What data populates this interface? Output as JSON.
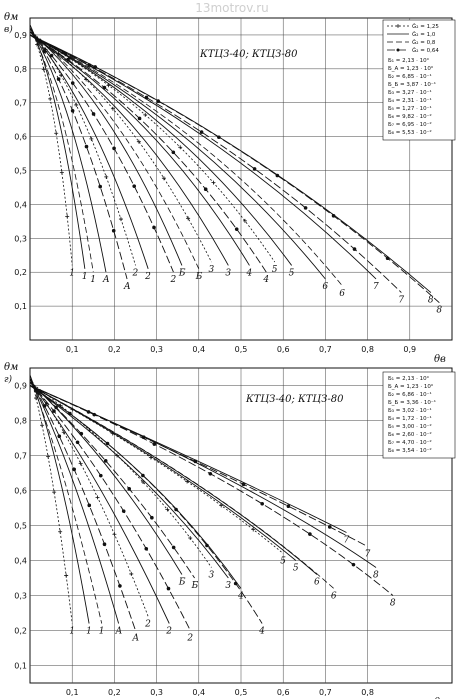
{
  "watermark": "13motrov.ru",
  "chart_data": [
    {
      "type": "line",
      "panel_letter": "в)",
      "title": "КТЦЗ-40; КТЦЗ-80",
      "ylabel": "θм",
      "xlabel": "θв",
      "xlim": [
        0.0,
        1.0
      ],
      "ylim": [
        0.0,
        0.95
      ],
      "grid": true,
      "x_ticks": [
        "0,1",
        "0,2",
        "0,3",
        "0,4",
        "0,5",
        "0,6",
        "0,7",
        "0,8",
        "0,9"
      ],
      "y_ticks": [
        "0,1",
        "0,2",
        "0,3",
        "0,4",
        "0,5",
        "0,6",
        "0,7",
        "0,8",
        "0,9"
      ],
      "legend_styles": [
        {
          "label": "Ĝ₂ = 1,25",
          "dash": "2,2",
          "marker": "plus"
        },
        {
          "label": "Ĝ₂ = 1,0",
          "dash": "",
          "marker": "none"
        },
        {
          "label": "Ĝ₂ = 0,8",
          "dash": "6,3",
          "marker": "none"
        },
        {
          "label": "Ĝ₂ = 0,64",
          "dash": "8,3",
          "marker": "dot"
        }
      ],
      "legend_params": [
        "Б₁ = 2,13 · 10⁰",
        "Б_A = 1,23 · 10⁰",
        "Б₂ = 6,85 · 10⁻¹",
        "Б_Б = 3,87 · 10⁻¹",
        "Б₃ = 3,27 · 10⁻¹",
        "Б₄ = 2,31 · 10⁻¹",
        "Б₅ = 1,27 · 10⁻¹",
        "Б₆ = 9,82 · 10⁻²",
        "Б₇ = 6,95 · 10⁻²",
        "Б₈ = 5,53 · 10⁻²"
      ],
      "group_labels": [
        "1",
        "A",
        "2",
        "Б",
        "3",
        "4",
        "5",
        "6",
        "7",
        "8"
      ],
      "curves": [
        {
          "group": "1",
          "style": 0,
          "x": [
            0.0,
            0.06,
            0.1
          ],
          "y": [
            0.93,
            0.75,
            0.22
          ]
        },
        {
          "group": "1",
          "style": 1,
          "x": [
            0.0,
            0.07,
            0.13
          ],
          "y": [
            0.93,
            0.74,
            0.21
          ]
        },
        {
          "group": "1",
          "style": 2,
          "x": [
            0.0,
            0.08,
            0.15
          ],
          "y": [
            0.92,
            0.73,
            0.2
          ]
        },
        {
          "group": "A",
          "style": 1,
          "x": [
            0.0,
            0.1,
            0.18
          ],
          "y": [
            0.92,
            0.72,
            0.2
          ]
        },
        {
          "group": "A",
          "style": 3,
          "x": [
            0.0,
            0.12,
            0.23
          ],
          "y": [
            0.92,
            0.7,
            0.18
          ]
        },
        {
          "group": "2",
          "style": 0,
          "x": [
            0.0,
            0.13,
            0.25
          ],
          "y": [
            0.92,
            0.72,
            0.22
          ]
        },
        {
          "group": "2",
          "style": 1,
          "x": [
            0.0,
            0.15,
            0.28
          ],
          "y": [
            0.91,
            0.7,
            0.21
          ]
        },
        {
          "group": "2",
          "style": 3,
          "x": [
            0.0,
            0.18,
            0.34
          ],
          "y": [
            0.91,
            0.68,
            0.2
          ]
        },
        {
          "group": "Б",
          "style": 1,
          "x": [
            0.0,
            0.2,
            0.36
          ],
          "y": [
            0.91,
            0.7,
            0.22
          ]
        },
        {
          "group": "Б",
          "style": 2,
          "x": [
            0.0,
            0.22,
            0.4
          ],
          "y": [
            0.91,
            0.69,
            0.21
          ]
        },
        {
          "group": "3",
          "style": 0,
          "x": [
            0.0,
            0.24,
            0.43
          ],
          "y": [
            0.91,
            0.7,
            0.23
          ]
        },
        {
          "group": "3",
          "style": 1,
          "x": [
            0.0,
            0.26,
            0.47
          ],
          "y": [
            0.9,
            0.69,
            0.22
          ]
        },
        {
          "group": "4",
          "style": 1,
          "x": [
            0.0,
            0.3,
            0.52
          ],
          "y": [
            0.9,
            0.67,
            0.22
          ]
        },
        {
          "group": "4",
          "style": 3,
          "x": [
            0.0,
            0.32,
            0.56
          ],
          "y": [
            0.9,
            0.66,
            0.2
          ]
        },
        {
          "group": "5",
          "style": 0,
          "x": [
            0.0,
            0.34,
            0.58
          ],
          "y": [
            0.9,
            0.67,
            0.23
          ]
        },
        {
          "group": "5",
          "style": 1,
          "x": [
            0.0,
            0.36,
            0.62
          ],
          "y": [
            0.9,
            0.66,
            0.22
          ]
        },
        {
          "group": "6",
          "style": 1,
          "x": [
            0.0,
            0.4,
            0.7
          ],
          "y": [
            0.9,
            0.64,
            0.18
          ]
        },
        {
          "group": "6",
          "style": 2,
          "x": [
            0.0,
            0.43,
            0.74
          ],
          "y": [
            0.9,
            0.63,
            0.16
          ]
        },
        {
          "group": "7",
          "style": 1,
          "x": [
            0.0,
            0.46,
            0.82
          ],
          "y": [
            0.9,
            0.62,
            0.18
          ]
        },
        {
          "group": "7",
          "style": 3,
          "x": [
            0.0,
            0.5,
            0.88
          ],
          "y": [
            0.9,
            0.6,
            0.14
          ]
        },
        {
          "group": "8",
          "style": 1,
          "x": [
            0.0,
            0.52,
            0.95
          ],
          "y": [
            0.9,
            0.6,
            0.14
          ]
        },
        {
          "group": "8",
          "style": 3,
          "x": [
            0.0,
            0.55,
            0.97
          ],
          "y": [
            0.9,
            0.58,
            0.11
          ]
        }
      ]
    },
    {
      "type": "line",
      "panel_letter": "г)",
      "title": "КТЦЗ-40; КТЦЗ-80",
      "ylabel": "θм",
      "xlabel": "θв",
      "xlim": [
        0.0,
        1.0
      ],
      "ylim": [
        0.05,
        0.95
      ],
      "grid": true,
      "x_ticks": [
        "0,1",
        "0,2",
        "0,3",
        "0,4",
        "0,5",
        "0,6",
        "0,7",
        "0,8"
      ],
      "y_ticks": [
        "0,1",
        "0,2",
        "0,3",
        "0,4",
        "0,5",
        "0,6",
        "0,7",
        "0,8",
        "0,9"
      ],
      "legend_params": [
        "Б₁ = 2,13 · 10⁰",
        "Б_A = 1,23 · 10⁰",
        "Б₂ = 6,86 · 10⁻¹",
        "Б_Б = 3,36 · 10⁻¹",
        "Б₃ = 3,02 · 10⁻¹",
        "Б₄ = 1,72 · 10⁻¹",
        "Б₅ = 3,00 · 10⁻²",
        "Б₆ = 2,60 · 10⁻²",
        "Б₇ = 4,70 · 10⁻²",
        "Б₈ = 3,54 · 10⁻²"
      ],
      "group_labels": [
        "1",
        "A",
        "2",
        "Б",
        "3",
        "4",
        "5",
        "6",
        "7",
        "8"
      ],
      "curves": [
        {
          "group": "1",
          "style": 0,
          "x": [
            0.0,
            0.05,
            0.1
          ],
          "y": [
            0.93,
            0.72,
            0.22
          ]
        },
        {
          "group": "1",
          "style": 1,
          "x": [
            0.0,
            0.07,
            0.14
          ],
          "y": [
            0.93,
            0.7,
            0.22
          ]
        },
        {
          "group": "1",
          "style": 2,
          "x": [
            0.0,
            0.08,
            0.17
          ],
          "y": [
            0.92,
            0.68,
            0.22
          ]
        },
        {
          "group": "A",
          "style": 1,
          "x": [
            0.0,
            0.1,
            0.21
          ],
          "y": [
            0.92,
            0.68,
            0.22
          ]
        },
        {
          "group": "A",
          "style": 3,
          "x": [
            0.0,
            0.12,
            0.25
          ],
          "y": [
            0.92,
            0.66,
            0.2
          ]
        },
        {
          "group": "2",
          "style": 0,
          "x": [
            0.0,
            0.14,
            0.28
          ],
          "y": [
            0.92,
            0.68,
            0.24
          ]
        },
        {
          "group": "2",
          "style": 1,
          "x": [
            0.0,
            0.16,
            0.33
          ],
          "y": [
            0.91,
            0.66,
            0.22
          ]
        },
        {
          "group": "2",
          "style": 3,
          "x": [
            0.0,
            0.2,
            0.38
          ],
          "y": [
            0.91,
            0.63,
            0.2
          ]
        },
        {
          "group": "Б",
          "style": 1,
          "x": [
            0.0,
            0.2,
            0.36
          ],
          "y": [
            0.91,
            0.68,
            0.36
          ]
        },
        {
          "group": "Б",
          "style": 3,
          "x": [
            0.0,
            0.22,
            0.39
          ],
          "y": [
            0.91,
            0.66,
            0.35
          ]
        },
        {
          "group": "3",
          "style": 0,
          "x": [
            0.0,
            0.26,
            0.43
          ],
          "y": [
            0.91,
            0.68,
            0.38
          ]
        },
        {
          "group": "3",
          "style": 1,
          "x": [
            0.0,
            0.28,
            0.47
          ],
          "y": [
            0.9,
            0.66,
            0.35
          ]
        },
        {
          "group": "4",
          "style": 1,
          "x": [
            0.0,
            0.3,
            0.5
          ],
          "y": [
            0.9,
            0.66,
            0.32
          ]
        },
        {
          "group": "4",
          "style": 3,
          "x": [
            0.0,
            0.34,
            0.55
          ],
          "y": [
            0.9,
            0.63,
            0.22
          ]
        },
        {
          "group": "5",
          "style": 0,
          "x": [
            0.0,
            0.36,
            0.6
          ],
          "y": [
            0.9,
            0.66,
            0.42
          ]
        },
        {
          "group": "5",
          "style": 1,
          "x": [
            0.0,
            0.38,
            0.63
          ],
          "y": [
            0.9,
            0.65,
            0.4
          ]
        },
        {
          "group": "6",
          "style": 1,
          "x": [
            0.0,
            0.42,
            0.68
          ],
          "y": [
            0.9,
            0.63,
            0.36
          ]
        },
        {
          "group": "6",
          "style": 2,
          "x": [
            0.0,
            0.44,
            0.72
          ],
          "y": [
            0.9,
            0.62,
            0.32
          ]
        },
        {
          "group": "7",
          "style": 1,
          "x": [
            0.0,
            0.47,
            0.75
          ],
          "y": [
            0.9,
            0.65,
            0.48
          ]
        },
        {
          "group": "7",
          "style": 3,
          "x": [
            0.0,
            0.5,
            0.8
          ],
          "y": [
            0.9,
            0.63,
            0.44
          ]
        },
        {
          "group": "8",
          "style": 1,
          "x": [
            0.0,
            0.52,
            0.82
          ],
          "y": [
            0.9,
            0.63,
            0.38
          ]
        },
        {
          "group": "8",
          "style": 3,
          "x": [
            0.0,
            0.55,
            0.86
          ],
          "y": [
            0.9,
            0.61,
            0.3
          ]
        }
      ]
    }
  ]
}
